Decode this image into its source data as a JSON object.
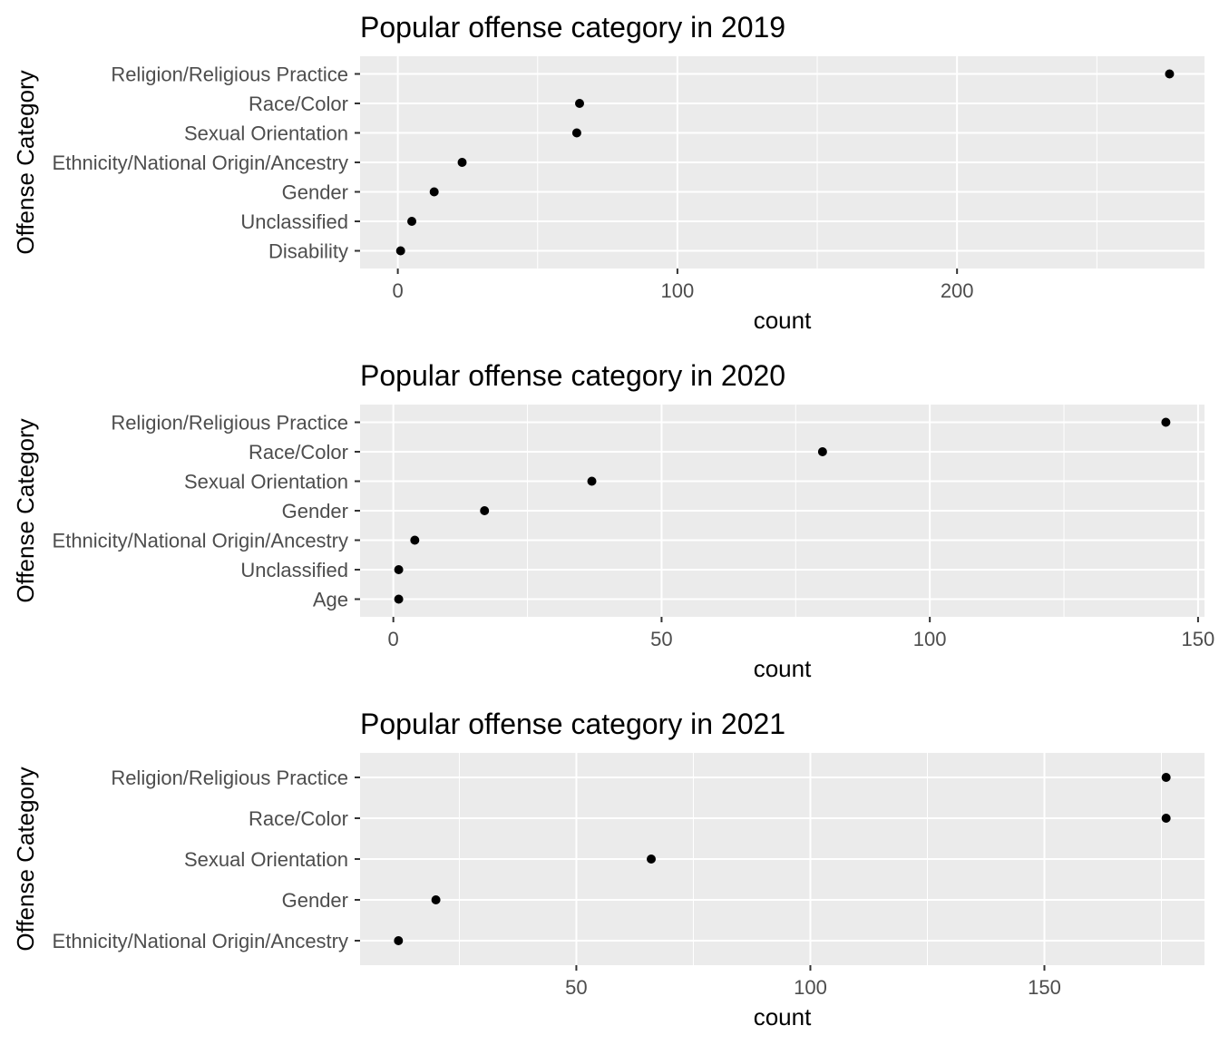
{
  "chart_data": [
    {
      "type": "scatter",
      "title": "Popular offense category in 2019",
      "xlabel": "count",
      "ylabel": "Offense Category",
      "xlim": [
        -13.5,
        288.5
      ],
      "xticks": [
        0,
        100,
        200
      ],
      "categories": [
        "Religion/Religious Practice",
        "Race/Color",
        "Sexual Orientation",
        "Ethnicity/National Origin/Ancestry",
        "Gender",
        "Unclassified",
        "Disability"
      ],
      "values": [
        276,
        65,
        64,
        23,
        13,
        5,
        1
      ],
      "grid": true,
      "legend": "none"
    },
    {
      "type": "scatter",
      "title": "Popular offense category in 2020",
      "xlabel": "count",
      "ylabel": "Offense Category",
      "xlim": [
        -6.2,
        151.2
      ],
      "xticks": [
        0,
        50,
        100,
        150
      ],
      "categories": [
        "Religion/Religious Practice",
        "Race/Color",
        "Sexual Orientation",
        "Gender",
        "Ethnicity/National Origin/Ancestry",
        "Unclassified",
        "Age"
      ],
      "values": [
        144,
        80,
        37,
        17,
        4,
        1,
        1
      ],
      "grid": true,
      "legend": "none"
    },
    {
      "type": "scatter",
      "title": "Popular offense category in 2021",
      "xlabel": "count",
      "ylabel": "Offense Category",
      "xlim": [
        3.8,
        184.2
      ],
      "xticks": [
        50,
        100,
        150
      ],
      "categories": [
        "Religion/Religious Practice",
        "Race/Color",
        "Sexual Orientation",
        "Gender",
        "Ethnicity/National Origin/Ancestry"
      ],
      "values": [
        176,
        176,
        66,
        20,
        12
      ],
      "grid": true,
      "legend": "none"
    }
  ]
}
